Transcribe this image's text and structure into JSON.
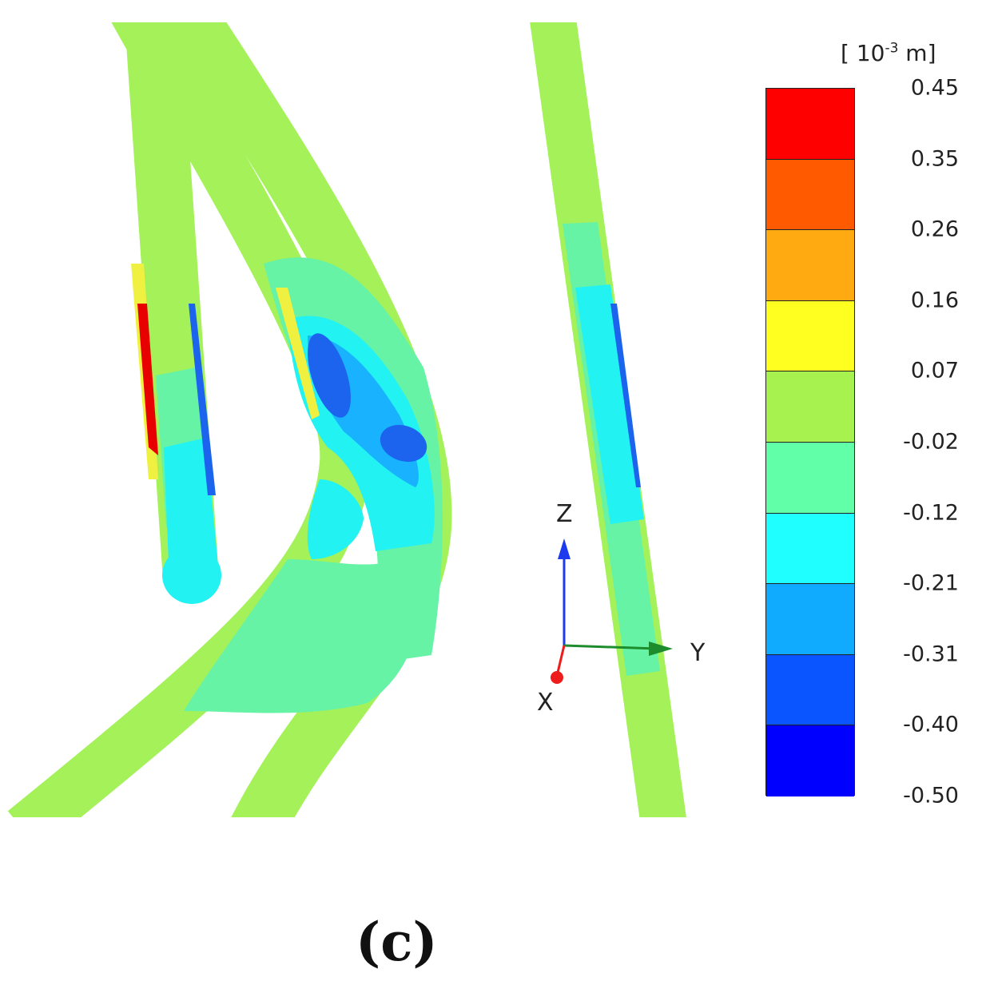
{
  "legend": {
    "unit_prefix": "[ 10",
    "unit_exponent": "-3",
    "unit_suffix": " m]",
    "ticks": [
      "0.45",
      "0.35",
      "0.26",
      "0.16",
      "0.07",
      "-0.02",
      "-0.12",
      "-0.21",
      "-0.31",
      "-0.40",
      "-0.50"
    ],
    "band_colors": [
      "#ff0000",
      "#ff5a00",
      "#ffaa10",
      "#ffff20",
      "#a8f250",
      "#60ffa8",
      "#20ffff",
      "#10aaff",
      "#0a55ff",
      "#0000ff"
    ]
  },
  "axes": {
    "z": "Z",
    "y": "Y",
    "x": "X"
  },
  "colors": {
    "tube_base": "#a4f15a",
    "tube_edge": "#86cf42",
    "mint": "#66f3a6",
    "cyan": "#22f2f2",
    "light_blue": "#18b2ff",
    "blue": "#1c63ee",
    "dark_blue": "#0022ee",
    "yellow": "#f0f040",
    "red": "#e80000",
    "orange": "#ff9900",
    "axis_z": "#1c3aee",
    "axis_y": "#1c8c2c",
    "axis_x": "#ee1c1c"
  },
  "caption": "(c)"
}
